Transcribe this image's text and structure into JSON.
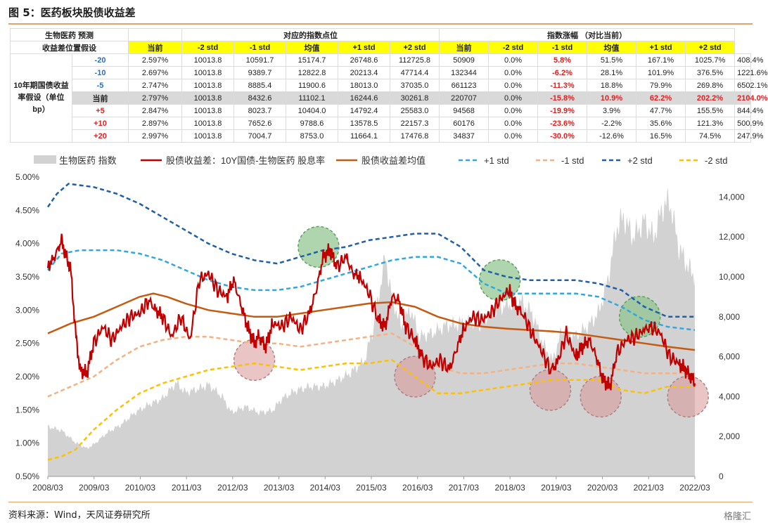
{
  "title": "图 5：医药板块股债收益差",
  "table": {
    "h1": [
      "生物医药 预测",
      "对应的指数点位",
      "指数涨幅 （对比当前）"
    ],
    "h2a": "收益差位置假设",
    "cols": [
      "当前",
      "-2 std",
      "-1 std",
      "均值",
      "+1 std",
      "+2 std"
    ],
    "side_label": "10年期国债收益率假设（单位bp）",
    "rows": [
      {
        "shift": "-20",
        "rate": "2.597%",
        "pts": [
          "10013.8",
          "10591.7",
          "15174.7",
          "26748.6",
          "112725.8",
          "50909"
        ],
        "chg": [
          "0.0%",
          "5.8%",
          "51.5%",
          "167.1%",
          "1025.7%",
          "408.4%"
        ]
      },
      {
        "shift": "-10",
        "rate": "2.697%",
        "pts": [
          "10013.8",
          "9389.7",
          "12822.8",
          "20213.4",
          "47714.4",
          "132344"
        ],
        "chg": [
          "0.0%",
          "-6.2%",
          "28.1%",
          "101.9%",
          "376.5%",
          "1221.6%"
        ]
      },
      {
        "shift": "-5",
        "rate": "2.747%",
        "pts": [
          "10013.8",
          "8885.4",
          "11900.6",
          "18013.0",
          "37035.0",
          "661123"
        ],
        "chg": [
          "0.0%",
          "-11.3%",
          "18.8%",
          "79.9%",
          "269.8%",
          "6502.1%"
        ]
      },
      {
        "shift": "当前",
        "rate": "2.797%",
        "pts": [
          "10013.8",
          "8432.6",
          "11102.1",
          "16244.6",
          "30261.8",
          "220707"
        ],
        "chg": [
          "0.0%",
          "-15.8%",
          "10.9%",
          "62.2%",
          "202.2%",
          "2104.0%"
        ]
      },
      {
        "shift": "+5",
        "rate": "2.847%",
        "pts": [
          "10013.8",
          "8023.7",
          "10404.0",
          "14792.4",
          "25583.0",
          "94568"
        ],
        "chg": [
          "0.0%",
          "-19.9%",
          "3.9%",
          "47.7%",
          "155.5%",
          "844.4%"
        ]
      },
      {
        "shift": "+10",
        "rate": "2.897%",
        "pts": [
          "10013.8",
          "7652.6",
          "9788.6",
          "13578.5",
          "22157.3",
          "60176"
        ],
        "chg": [
          "0.0%",
          "-23.6%",
          "-2.2%",
          "35.6%",
          "121.3%",
          "500.9%"
        ]
      },
      {
        "shift": "+20",
        "rate": "2.997%",
        "pts": [
          "10013.8",
          "7004.7",
          "8753.0",
          "11664.1",
          "17476.8",
          "34837"
        ],
        "chg": [
          "0.0%",
          "-30.0%",
          "-12.6%",
          "16.5%",
          "74.5%",
          "247.9%"
        ]
      }
    ]
  },
  "chart_data": {
    "type": "line",
    "legend": [
      "生物医药 指数",
      "股债收益差：10Y国债-生物医药 股息率",
      "股债收益差均值",
      "+1 std",
      "-1 std",
      "+2 std",
      "-2 std"
    ],
    "x_ticks": [
      "2008/03",
      "2009/03",
      "2010/03",
      "2011/03",
      "2012/03",
      "2013/03",
      "2014/03",
      "2015/03",
      "2016/03",
      "2017/03",
      "2018/03",
      "2019/03",
      "2020/03",
      "2021/03",
      "2022/03"
    ],
    "y_left_ticks": [
      "5.00%",
      "4.50%",
      "4.00%",
      "3.50%",
      "3.00%",
      "2.50%",
      "2.00%",
      "1.50%",
      "1.00%",
      "0.50%"
    ],
    "y_right_ticks": [
      "14,000",
      "12,000",
      "10,000",
      "8,000",
      "6,000",
      "4,000",
      "2,000",
      "0"
    ],
    "ylim_left": [
      0.5,
      5.0
    ],
    "ylim_right": [
      0,
      15000
    ],
    "colors": {
      "area": "#d2d2d2",
      "spread": "#c00000",
      "mean": "#c55a11",
      "p1": "#2fa8e0",
      "m1": "#f4b183",
      "p2": "#1f5fa8",
      "m2": "#ffc000"
    },
    "spread": [
      [
        2008.0,
        3.65
      ],
      [
        2008.15,
        3.8
      ],
      [
        2008.3,
        4.05
      ],
      [
        2008.4,
        3.8
      ],
      [
        2008.5,
        3.6
      ],
      [
        2008.6,
        2.7
      ],
      [
        2008.7,
        2.1
      ],
      [
        2008.85,
        2.05
      ],
      [
        2009.0,
        2.5
      ],
      [
        2009.2,
        2.75
      ],
      [
        2009.4,
        2.55
      ],
      [
        2009.6,
        2.75
      ],
      [
        2009.8,
        2.9
      ],
      [
        2010.0,
        2.95
      ],
      [
        2010.2,
        3.15
      ],
      [
        2010.35,
        3.0
      ],
      [
        2010.5,
        2.9
      ],
      [
        2010.7,
        2.6
      ],
      [
        2010.9,
        2.9
      ],
      [
        2011.1,
        2.55
      ],
      [
        2011.3,
        3.45
      ],
      [
        2011.5,
        3.55
      ],
      [
        2011.7,
        3.3
      ],
      [
        2011.9,
        3.2
      ],
      [
        2012.05,
        3.45
      ],
      [
        2012.2,
        3.1
      ],
      [
        2012.35,
        2.75
      ],
      [
        2012.5,
        2.5
      ],
      [
        2012.6,
        2.6
      ],
      [
        2012.75,
        2.45
      ],
      [
        2012.9,
        2.8
      ],
      [
        2013.1,
        2.75
      ],
      [
        2013.3,
        2.9
      ],
      [
        2013.5,
        2.7
      ],
      [
        2013.7,
        2.95
      ],
      [
        2013.85,
        3.3
      ],
      [
        2014.0,
        3.8
      ],
      [
        2014.15,
        3.9
      ],
      [
        2014.3,
        3.65
      ],
      [
        2014.5,
        3.8
      ],
      [
        2014.65,
        3.55
      ],
      [
        2014.8,
        3.5
      ],
      [
        2015.0,
        3.25
      ],
      [
        2015.2,
        2.85
      ],
      [
        2015.35,
        2.75
      ],
      [
        2015.5,
        3.2
      ],
      [
        2015.65,
        3.15
      ],
      [
        2015.8,
        2.75
      ],
      [
        2016.0,
        2.55
      ],
      [
        2016.15,
        2.3
      ],
      [
        2016.35,
        2.15
      ],
      [
        2016.55,
        2.25
      ],
      [
        2016.75,
        2.1
      ],
      [
        2016.9,
        2.4
      ],
      [
        2017.05,
        2.7
      ],
      [
        2017.25,
        2.9
      ],
      [
        2017.45,
        2.85
      ],
      [
        2017.65,
        2.95
      ],
      [
        2017.85,
        3.15
      ],
      [
        2018.05,
        3.3
      ],
      [
        2018.2,
        3.05
      ],
      [
        2018.35,
        2.95
      ],
      [
        2018.55,
        2.65
      ],
      [
        2018.75,
        2.4
      ],
      [
        2018.95,
        2.1
      ],
      [
        2019.1,
        2.2
      ],
      [
        2019.3,
        2.65
      ],
      [
        2019.5,
        2.3
      ],
      [
        2019.65,
        2.45
      ],
      [
        2019.8,
        2.55
      ],
      [
        2019.95,
        2.3
      ],
      [
        2020.1,
        1.95
      ],
      [
        2020.25,
        1.85
      ],
      [
        2020.4,
        2.35
      ],
      [
        2020.6,
        2.55
      ],
      [
        2020.8,
        2.6
      ],
      [
        2021.0,
        2.7
      ],
      [
        2021.15,
        2.75
      ],
      [
        2021.35,
        2.65
      ],
      [
        2021.55,
        2.3
      ],
      [
        2021.75,
        2.2
      ],
      [
        2021.9,
        2.1
      ],
      [
        2022.0,
        2.0
      ],
      [
        2022.1,
        1.9
      ]
    ],
    "mean": [
      [
        2008.0,
        2.65
      ],
      [
        2008.5,
        2.8
      ],
      [
        2009.0,
        2.9
      ],
      [
        2009.5,
        3.05
      ],
      [
        2010.0,
        3.2
      ],
      [
        2010.3,
        3.25
      ],
      [
        2010.6,
        3.2
      ],
      [
        2011.0,
        3.1
      ],
      [
        2011.5,
        3.0
      ],
      [
        2012.0,
        2.95
      ],
      [
        2012.5,
        2.9
      ],
      [
        2013.0,
        2.9
      ],
      [
        2013.5,
        2.95
      ],
      [
        2014.0,
        3.0
      ],
      [
        2014.5,
        3.05
      ],
      [
        2015.0,
        3.1
      ],
      [
        2015.5,
        3.12
      ],
      [
        2016.0,
        3.05
      ],
      [
        2016.5,
        2.9
      ],
      [
        2017.0,
        2.8
      ],
      [
        2017.5,
        2.75
      ],
      [
        2018.0,
        2.72
      ],
      [
        2018.5,
        2.7
      ],
      [
        2019.0,
        2.68
      ],
      [
        2019.5,
        2.65
      ],
      [
        2020.0,
        2.6
      ],
      [
        2020.5,
        2.55
      ],
      [
        2021.0,
        2.5
      ],
      [
        2021.5,
        2.45
      ],
      [
        2022.1,
        2.4
      ]
    ],
    "plus1": [
      [
        2008.0,
        3.6
      ],
      [
        2008.3,
        3.85
      ],
      [
        2008.7,
        3.9
      ],
      [
        2009.5,
        3.9
      ],
      [
        2010.0,
        3.85
      ],
      [
        2010.5,
        3.75
      ],
      [
        2011.0,
        3.6
      ],
      [
        2011.5,
        3.45
      ],
      [
        2012.0,
        3.35
      ],
      [
        2012.5,
        3.3
      ],
      [
        2013.0,
        3.3
      ],
      [
        2013.5,
        3.35
      ],
      [
        2014.0,
        3.45
      ],
      [
        2014.5,
        3.55
      ],
      [
        2015.0,
        3.65
      ],
      [
        2015.5,
        3.75
      ],
      [
        2016.0,
        3.8
      ],
      [
        2016.5,
        3.8
      ],
      [
        2017.0,
        3.7
      ],
      [
        2017.5,
        3.4
      ],
      [
        2018.0,
        3.25
      ],
      [
        2018.5,
        3.25
      ],
      [
        2019.0,
        3.25
      ],
      [
        2019.5,
        3.25
      ],
      [
        2020.0,
        3.2
      ],
      [
        2020.5,
        3.05
      ],
      [
        2021.0,
        2.85
      ],
      [
        2021.5,
        2.75
      ],
      [
        2022.1,
        2.7
      ]
    ],
    "plus2": [
      [
        2008.0,
        4.55
      ],
      [
        2008.2,
        4.75
      ],
      [
        2008.45,
        4.9
      ],
      [
        2009.0,
        4.85
      ],
      [
        2009.5,
        4.75
      ],
      [
        2010.0,
        4.6
      ],
      [
        2010.5,
        4.4
      ],
      [
        2011.0,
        4.2
      ],
      [
        2011.5,
        4.0
      ],
      [
        2012.0,
        3.85
      ],
      [
        2012.5,
        3.75
      ],
      [
        2013.0,
        3.7
      ],
      [
        2013.5,
        3.8
      ],
      [
        2014.0,
        3.9
      ],
      [
        2014.5,
        3.95
      ],
      [
        2015.0,
        4.05
      ],
      [
        2015.5,
        4.1
      ],
      [
        2016.0,
        4.15
      ],
      [
        2016.5,
        4.15
      ],
      [
        2017.0,
        3.95
      ],
      [
        2017.5,
        3.6
      ],
      [
        2018.0,
        3.5
      ],
      [
        2018.5,
        3.45
      ],
      [
        2019.0,
        3.45
      ],
      [
        2019.5,
        3.45
      ],
      [
        2020.0,
        3.4
      ],
      [
        2020.5,
        3.3
      ],
      [
        2021.0,
        3.05
      ],
      [
        2021.5,
        2.9
      ],
      [
        2022.1,
        2.9
      ]
    ],
    "minus1": [
      [
        2008.0,
        1.7
      ],
      [
        2008.5,
        1.85
      ],
      [
        2009.0,
        2.0
      ],
      [
        2009.5,
        2.25
      ],
      [
        2010.0,
        2.45
      ],
      [
        2010.5,
        2.55
      ],
      [
        2011.0,
        2.6
      ],
      [
        2011.5,
        2.6
      ],
      [
        2012.0,
        2.55
      ],
      [
        2012.5,
        2.5
      ],
      [
        2013.0,
        2.5
      ],
      [
        2013.5,
        2.45
      ],
      [
        2014.0,
        2.5
      ],
      [
        2014.5,
        2.55
      ],
      [
        2015.0,
        2.6
      ],
      [
        2015.5,
        2.65
      ],
      [
        2016.0,
        2.45
      ],
      [
        2016.5,
        2.15
      ],
      [
        2017.0,
        2.05
      ],
      [
        2017.5,
        2.05
      ],
      [
        2018.0,
        2.1
      ],
      [
        2018.5,
        2.15
      ],
      [
        2019.0,
        2.2
      ],
      [
        2019.5,
        2.2
      ],
      [
        2020.0,
        2.15
      ],
      [
        2020.5,
        2.1
      ],
      [
        2021.0,
        2.05
      ],
      [
        2021.5,
        2.05
      ],
      [
        2022.1,
        2.05
      ]
    ],
    "minus2": [
      [
        2008.0,
        0.75
      ],
      [
        2008.3,
        0.8
      ],
      [
        2008.6,
        0.9
      ],
      [
        2009.0,
        1.2
      ],
      [
        2009.5,
        1.5
      ],
      [
        2010.0,
        1.75
      ],
      [
        2010.5,
        1.9
      ],
      [
        2011.0,
        2.0
      ],
      [
        2011.5,
        2.1
      ],
      [
        2012.0,
        2.15
      ],
      [
        2012.5,
        2.2
      ],
      [
        2013.0,
        2.15
      ],
      [
        2013.5,
        2.1
      ],
      [
        2014.0,
        2.15
      ],
      [
        2014.5,
        2.2
      ],
      [
        2015.0,
        2.2
      ],
      [
        2015.5,
        2.25
      ],
      [
        2016.0,
        2.0
      ],
      [
        2016.5,
        1.75
      ],
      [
        2017.0,
        1.75
      ],
      [
        2017.5,
        1.8
      ],
      [
        2018.0,
        1.85
      ],
      [
        2018.5,
        1.9
      ],
      [
        2019.0,
        1.95
      ],
      [
        2019.5,
        1.95
      ],
      [
        2020.0,
        1.95
      ],
      [
        2020.5,
        1.8
      ],
      [
        2021.0,
        1.75
      ],
      [
        2021.5,
        1.85
      ],
      [
        2022.1,
        1.85
      ]
    ],
    "index": [
      [
        2008.0,
        2500
      ],
      [
        2008.3,
        2300
      ],
      [
        2008.6,
        1700
      ],
      [
        2008.85,
        1400
      ],
      [
        2009.0,
        1600
      ],
      [
        2009.3,
        2200
      ],
      [
        2009.6,
        2600
      ],
      [
        2009.9,
        3200
      ],
      [
        2010.2,
        3600
      ],
      [
        2010.5,
        3900
      ],
      [
        2010.8,
        4700
      ],
      [
        2011.0,
        4200
      ],
      [
        2011.3,
        4400
      ],
      [
        2011.5,
        4600
      ],
      [
        2011.8,
        4000
      ],
      [
        2012.0,
        3200
      ],
      [
        2012.3,
        3500
      ],
      [
        2012.6,
        3200
      ],
      [
        2012.9,
        3300
      ],
      [
        2013.1,
        3900
      ],
      [
        2013.4,
        4300
      ],
      [
        2013.7,
        4500
      ],
      [
        2014.0,
        4500
      ],
      [
        2014.3,
        4800
      ],
      [
        2014.6,
        5200
      ],
      [
        2014.9,
        5800
      ],
      [
        2015.1,
        7500
      ],
      [
        2015.35,
        11000
      ],
      [
        2015.5,
        9000
      ],
      [
        2015.7,
        7500
      ],
      [
        2015.9,
        8400
      ],
      [
        2016.1,
        7000
      ],
      [
        2016.4,
        7200
      ],
      [
        2016.7,
        7600
      ],
      [
        2016.9,
        7600
      ],
      [
        2017.1,
        7800
      ],
      [
        2017.4,
        7600
      ],
      [
        2017.7,
        8300
      ],
      [
        2018.0,
        8600
      ],
      [
        2018.3,
        8800
      ],
      [
        2018.55,
        8200
      ],
      [
        2018.8,
        6600
      ],
      [
        2019.0,
        5800
      ],
      [
        2019.2,
        7300
      ],
      [
        2019.5,
        7000
      ],
      [
        2019.8,
        7600
      ],
      [
        2020.0,
        8200
      ],
      [
        2020.2,
        9800
      ],
      [
        2020.4,
        12500
      ],
      [
        2020.55,
        13000
      ],
      [
        2020.75,
        12000
      ],
      [
        2021.0,
        12800
      ],
      [
        2021.2,
        12000
      ],
      [
        2021.4,
        13500
      ],
      [
        2021.55,
        13800
      ],
      [
        2021.75,
        11500
      ],
      [
        2021.95,
        10500
      ],
      [
        2022.1,
        10000
      ]
    ],
    "bubbles": [
      {
        "x": 2012.5,
        "y": 2.25,
        "kind": "low"
      },
      {
        "x": 2013.9,
        "y": 3.95,
        "kind": "high"
      },
      {
        "x": 2016.0,
        "y": 2.0,
        "kind": "low"
      },
      {
        "x": 2017.85,
        "y": 3.45,
        "kind": "high"
      },
      {
        "x": 2018.95,
        "y": 1.8,
        "kind": "low"
      },
      {
        "x": 2020.05,
        "y": 1.7,
        "kind": "low"
      },
      {
        "x": 2020.9,
        "y": 2.9,
        "kind": "high"
      },
      {
        "x": 2021.95,
        "y": 1.7,
        "kind": "low"
      }
    ]
  },
  "source": "资料来源：Wind，天风证券研究所",
  "watermark": "格隆汇"
}
